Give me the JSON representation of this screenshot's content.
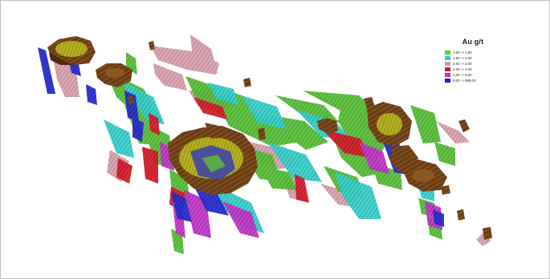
{
  "legend": {
    "title": "Au g/t",
    "items": [
      {
        "label": "1.00 -> 1.50",
        "color": "#66cc33"
      },
      {
        "label": "1.50 -> 2.00",
        "color": "#22d3d3"
      },
      {
        "label": "2.00 -> 3.00",
        "color": "#d89aa8"
      },
      {
        "label": "3.00 -> 4.00",
        "color": "#dd1a2a"
      },
      {
        "label": "4.00 -> 5.00",
        "color": "#c030c8"
      },
      {
        "label": "5.00 -> 999.00",
        "color": "#2222cc"
      }
    ]
  },
  "pits_color": "#6b3d14",
  "pit_highlight_color": "#c8c018"
}
